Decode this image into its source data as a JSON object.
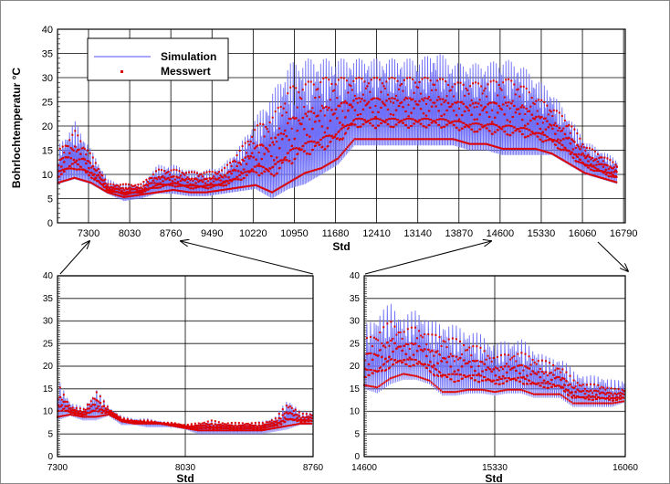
{
  "colors": {
    "simulation": "#6f6ff7",
    "messwert": "#dd0000",
    "grid": "#000000"
  },
  "chart_data": [
    {
      "id": "main",
      "type": "line",
      "ylabel": "Bohrlochtemperatur °C",
      "xlabel": "Std",
      "xlim": [
        6750,
        16820
      ],
      "ylim": [
        0,
        40
      ],
      "xticks": [
        7300,
        8030,
        8760,
        9490,
        10220,
        10950,
        11680,
        12410,
        13140,
        13870,
        14600,
        15330,
        16060,
        16790
      ],
      "yticks": [
        0,
        5,
        10,
        15,
        20,
        25,
        30,
        35,
        40
      ],
      "grid": true,
      "legend": {
        "placement": "top-left",
        "entries": [
          "Simulation",
          "Messwert"
        ]
      },
      "x": [
        6760,
        7052,
        7344,
        7636,
        7928,
        8220,
        8512,
        8804,
        9096,
        9388,
        9680,
        9972,
        10264,
        10556,
        10848,
        11140,
        11432,
        11724,
        12016,
        12308,
        12600,
        12892,
        13184,
        13476,
        13768,
        14060,
        14352,
        14644,
        14936,
        15228,
        15520,
        15812,
        16104,
        16396,
        16688
      ],
      "series": [
        {
          "name": "Simulation",
          "min": [
            8,
            9,
            8,
            6,
            4.5,
            5,
            6,
            6,
            5.5,
            5.5,
            6,
            6.5,
            7,
            5,
            7,
            8,
            10,
            12,
            16,
            16,
            16,
            16,
            16,
            16,
            16,
            15,
            15,
            14,
            14,
            14,
            14,
            12,
            10,
            9,
            8
          ],
          "max": [
            16,
            21,
            15,
            9,
            8,
            8,
            12,
            12,
            11,
            11,
            12,
            16,
            22,
            27,
            33,
            34,
            34,
            34,
            34,
            34,
            34,
            34,
            34,
            35.5,
            33,
            33,
            33,
            34,
            33,
            30,
            27,
            22,
            17,
            15,
            13
          ]
        },
        {
          "name": "Messwert",
          "min": [
            8,
            9,
            8,
            6,
            5,
            5.5,
            6,
            6.5,
            6,
            6,
            6.5,
            7,
            7.5,
            6,
            8,
            10,
            11,
            13,
            17,
            17,
            17,
            17,
            17,
            17,
            17,
            16,
            16,
            15,
            15,
            15,
            14,
            12,
            10,
            9,
            8
          ],
          "max": [
            15,
            19,
            14,
            8,
            8,
            8,
            11,
            11,
            10.5,
            10.5,
            11,
            15,
            20,
            22,
            28,
            29,
            30,
            30,
            30,
            30,
            30,
            30,
            30,
            30,
            29,
            29,
            29,
            30,
            29,
            26,
            24,
            21,
            16,
            14,
            12
          ]
        }
      ]
    },
    {
      "id": "zoom-left",
      "type": "line",
      "xlabel": "Std",
      "xlim": [
        7300,
        8760
      ],
      "ylim": [
        0,
        40
      ],
      "xticks": [
        7300,
        8030,
        8760
      ],
      "yticks": [
        0,
        5,
        10,
        15,
        20,
        25,
        30,
        35,
        40
      ],
      "grid": true,
      "x": [
        7300,
        7373,
        7446,
        7519,
        7592,
        7665,
        7738,
        7811,
        7884,
        7957,
        8030,
        8103,
        8176,
        8249,
        8322,
        8395,
        8468,
        8541,
        8614,
        8687,
        8760
      ],
      "series": [
        {
          "name": "Simulation",
          "min": [
            8,
            9,
            8,
            8,
            9,
            7,
            7,
            6.5,
            6.5,
            6.5,
            6,
            5,
            5,
            5,
            5,
            5,
            5,
            5.5,
            6,
            7,
            7
          ],
          "max": [
            17,
            12,
            11,
            15,
            11,
            9,
            8.5,
            8.5,
            8,
            7.5,
            7,
            7.5,
            8,
            7.5,
            7.5,
            7.5,
            8,
            9,
            13,
            10,
            10
          ]
        },
        {
          "name": "Messwert",
          "min": [
            8.5,
            9,
            8.5,
            8.5,
            9,
            7.5,
            7,
            7,
            7,
            6.5,
            6,
            5.5,
            5.5,
            5.5,
            5.5,
            5.5,
            5.5,
            6,
            6.5,
            7,
            7
          ],
          "max": [
            16,
            11,
            10.5,
            14.5,
            10.5,
            8.5,
            8,
            8,
            7.5,
            7.5,
            7,
            7.5,
            8,
            7.5,
            7.5,
            7.5,
            7.5,
            8.5,
            12,
            9.5,
            9.5
          ]
        }
      ]
    },
    {
      "id": "zoom-right",
      "type": "line",
      "xlabel": "Std",
      "xlim": [
        14600,
        16060
      ],
      "ylim": [
        0,
        40
      ],
      "xticks": [
        14600,
        15330,
        16060
      ],
      "yticks": [
        0,
        5,
        10,
        15,
        20,
        25,
        30,
        35,
        40
      ],
      "grid": true,
      "x": [
        14600,
        14673,
        14746,
        14819,
        14892,
        14965,
        15038,
        15111,
        15184,
        15257,
        15330,
        15403,
        15476,
        15549,
        15622,
        15695,
        15768,
        15841,
        15914,
        15987,
        16060
      ],
      "series": [
        {
          "name": "Simulation",
          "min": [
            15,
            14,
            16,
            17,
            17,
            16,
            13.5,
            13.5,
            14,
            14,
            13.5,
            14,
            14,
            13,
            13,
            13,
            11,
            11,
            11,
            11,
            12
          ],
          "max": [
            29,
            32,
            34,
            31,
            33,
            30,
            30,
            29,
            28,
            27,
            25,
            26,
            26,
            24,
            22,
            22,
            19,
            18,
            18,
            17,
            17
          ]
        },
        {
          "name": "Messwert",
          "min": [
            15.5,
            15,
            17,
            18,
            17.5,
            16.5,
            14,
            14,
            14.5,
            14.5,
            14,
            14.5,
            14.5,
            13.5,
            13.5,
            13.5,
            11.5,
            11.5,
            11.5,
            11.5,
            12
          ],
          "max": [
            26,
            28,
            30,
            28,
            29,
            27,
            27,
            26,
            25,
            24,
            22,
            23,
            23,
            22,
            21,
            20,
            17,
            16,
            16,
            15,
            15
          ]
        }
      ]
    }
  ]
}
